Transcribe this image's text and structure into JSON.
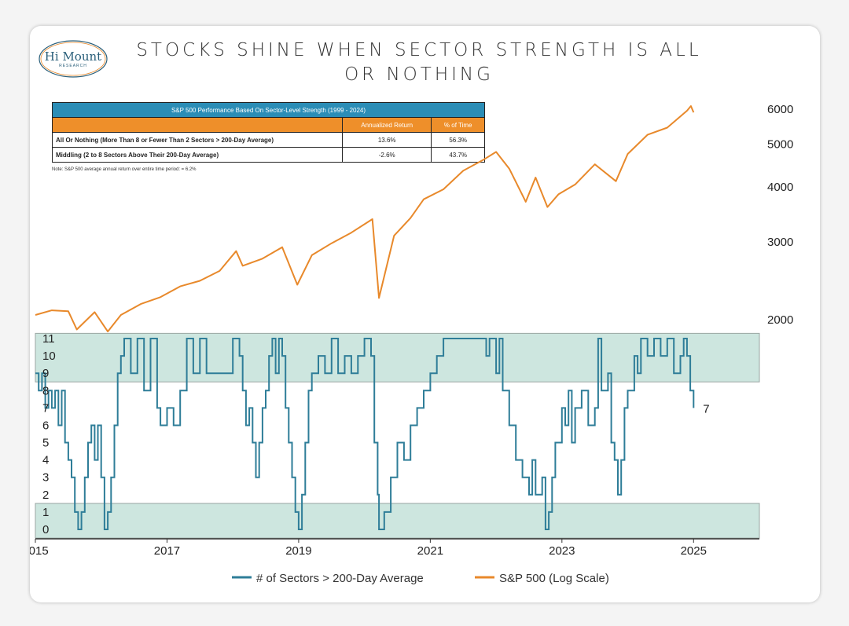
{
  "header": {
    "title_line1": "STOCKS SHINE WHEN SECTOR STRENGTH IS ALL",
    "title_line2": "OR NOTHING",
    "logo_line1": "Hi Mount",
    "logo_line2": "RESEARCH"
  },
  "table": {
    "title": "S&P 500 Performance Based On Sector-Level Strength (1999 - 2024)",
    "col1": "Annualized Return",
    "col2": "% of Time",
    "rows": [
      {
        "label": "All Or Nothing (More Than 8 or Fewer Than 2 Sectors > 200-Day Average)",
        "ret": "13.6%",
        "time": "56.3%"
      },
      {
        "label": "Middling (2 to 8 Sectors Above Their 200-Day Average)",
        "ret": "-2.6%",
        "time": "43.7%"
      }
    ],
    "note": "Note: S&P 500 average annual return over entire time period: = 6.2%"
  },
  "colors": {
    "sp500": "#e8892b",
    "sectors": "#2e7d98",
    "band": "#cde6df",
    "band_border": "#9aa6a3"
  },
  "chart_data": {
    "type": "line",
    "x_ticks": [
      "2015",
      "2017",
      "2019",
      "2021",
      "2023",
      "2025"
    ],
    "xlim": [
      2015,
      2026
    ],
    "sp500_ticks": [
      "2000",
      "3000",
      "4000",
      "5000",
      "6000"
    ],
    "sp500_scale": "log",
    "sector_ticks": [
      "0",
      "1",
      "2",
      "3",
      "4",
      "5",
      "6",
      "7",
      "8",
      "9",
      "10",
      "11"
    ],
    "sector_ylim": [
      0,
      11
    ],
    "bands": [
      [
        8.5,
        11.3
      ],
      [
        -0.5,
        1.5
      ]
    ],
    "end_annotation": "7",
    "series": [
      {
        "name": "S&P 500 (Log Scale)",
        "points": [
          [
            2015.0,
            2050
          ],
          [
            2015.25,
            2100
          ],
          [
            2015.5,
            2090
          ],
          [
            2015.63,
            1900
          ],
          [
            2015.9,
            2080
          ],
          [
            2016.1,
            1880
          ],
          [
            2016.3,
            2050
          ],
          [
            2016.6,
            2170
          ],
          [
            2016.9,
            2250
          ],
          [
            2017.2,
            2380
          ],
          [
            2017.5,
            2450
          ],
          [
            2017.8,
            2580
          ],
          [
            2018.05,
            2860
          ],
          [
            2018.15,
            2650
          ],
          [
            2018.45,
            2750
          ],
          [
            2018.75,
            2920
          ],
          [
            2018.98,
            2400
          ],
          [
            2019.2,
            2800
          ],
          [
            2019.5,
            2980
          ],
          [
            2019.8,
            3150
          ],
          [
            2020.12,
            3380
          ],
          [
            2020.22,
            2240
          ],
          [
            2020.45,
            3100
          ],
          [
            2020.7,
            3400
          ],
          [
            2020.9,
            3750
          ],
          [
            2021.2,
            3950
          ],
          [
            2021.5,
            4350
          ],
          [
            2021.8,
            4600
          ],
          [
            2022.0,
            4800
          ],
          [
            2022.2,
            4400
          ],
          [
            2022.45,
            3700
          ],
          [
            2022.6,
            4200
          ],
          [
            2022.78,
            3600
          ],
          [
            2022.95,
            3850
          ],
          [
            2023.2,
            4050
          ],
          [
            2023.5,
            4500
          ],
          [
            2023.82,
            4120
          ],
          [
            2024.0,
            4750
          ],
          [
            2024.3,
            5250
          ],
          [
            2024.6,
            5450
          ],
          [
            2024.9,
            5950
          ],
          [
            2024.96,
            6100
          ],
          [
            2025.0,
            5900
          ]
        ]
      },
      {
        "name": "# of Sectors > 200-Day Average",
        "points": [
          [
            2015.0,
            9
          ],
          [
            2015.05,
            8
          ],
          [
            2015.1,
            9
          ],
          [
            2015.15,
            7
          ],
          [
            2015.2,
            8
          ],
          [
            2015.25,
            7
          ],
          [
            2015.3,
            8
          ],
          [
            2015.35,
            6
          ],
          [
            2015.4,
            8
          ],
          [
            2015.45,
            5
          ],
          [
            2015.5,
            4
          ],
          [
            2015.55,
            3
          ],
          [
            2015.6,
            1
          ],
          [
            2015.65,
            0
          ],
          [
            2015.7,
            1
          ],
          [
            2015.75,
            3
          ],
          [
            2015.8,
            5
          ],
          [
            2015.85,
            6
          ],
          [
            2015.9,
            4
          ],
          [
            2015.95,
            6
          ],
          [
            2016.0,
            3
          ],
          [
            2016.05,
            0
          ],
          [
            2016.1,
            1
          ],
          [
            2016.15,
            3
          ],
          [
            2016.2,
            6
          ],
          [
            2016.25,
            9
          ],
          [
            2016.3,
            10
          ],
          [
            2016.35,
            11
          ],
          [
            2016.45,
            9
          ],
          [
            2016.55,
            11
          ],
          [
            2016.65,
            8
          ],
          [
            2016.75,
            11
          ],
          [
            2016.85,
            7
          ],
          [
            2016.9,
            6
          ],
          [
            2017.0,
            7
          ],
          [
            2017.1,
            6
          ],
          [
            2017.2,
            8
          ],
          [
            2017.3,
            11
          ],
          [
            2017.4,
            9
          ],
          [
            2017.5,
            11
          ],
          [
            2017.6,
            9
          ],
          [
            2017.8,
            9
          ],
          [
            2017.95,
            9
          ],
          [
            2018.0,
            11
          ],
          [
            2018.1,
            10
          ],
          [
            2018.15,
            8
          ],
          [
            2018.2,
            6
          ],
          [
            2018.25,
            7
          ],
          [
            2018.3,
            5
          ],
          [
            2018.35,
            3
          ],
          [
            2018.4,
            5
          ],
          [
            2018.45,
            7
          ],
          [
            2018.5,
            8
          ],
          [
            2018.55,
            10
          ],
          [
            2018.6,
            11
          ],
          [
            2018.65,
            9
          ],
          [
            2018.7,
            11
          ],
          [
            2018.75,
            10
          ],
          [
            2018.8,
            7
          ],
          [
            2018.85,
            5
          ],
          [
            2018.9,
            3
          ],
          [
            2018.95,
            1
          ],
          [
            2019.0,
            0
          ],
          [
            2019.05,
            2
          ],
          [
            2019.1,
            5
          ],
          [
            2019.15,
            8
          ],
          [
            2019.2,
            9
          ],
          [
            2019.3,
            10
          ],
          [
            2019.4,
            9
          ],
          [
            2019.5,
            11
          ],
          [
            2019.6,
            9
          ],
          [
            2019.7,
            10
          ],
          [
            2019.8,
            9
          ],
          [
            2019.9,
            10
          ],
          [
            2020.0,
            11
          ],
          [
            2020.1,
            10
          ],
          [
            2020.15,
            5
          ],
          [
            2020.2,
            2
          ],
          [
            2020.22,
            0
          ],
          [
            2020.3,
            1
          ],
          [
            2020.4,
            3
          ],
          [
            2020.5,
            5
          ],
          [
            2020.6,
            4
          ],
          [
            2020.7,
            6
          ],
          [
            2020.8,
            7
          ],
          [
            2020.9,
            8
          ],
          [
            2021.0,
            9
          ],
          [
            2021.1,
            10
          ],
          [
            2021.2,
            11
          ],
          [
            2021.5,
            11
          ],
          [
            2021.75,
            11
          ],
          [
            2021.85,
            10
          ],
          [
            2021.9,
            11
          ],
          [
            2022.0,
            9
          ],
          [
            2022.05,
            11
          ],
          [
            2022.1,
            8
          ],
          [
            2022.2,
            6
          ],
          [
            2022.3,
            4
          ],
          [
            2022.4,
            3
          ],
          [
            2022.5,
            2
          ],
          [
            2022.55,
            4
          ],
          [
            2022.6,
            2
          ],
          [
            2022.7,
            3
          ],
          [
            2022.75,
            0
          ],
          [
            2022.8,
            1
          ],
          [
            2022.85,
            3
          ],
          [
            2022.9,
            5
          ],
          [
            2023.0,
            7
          ],
          [
            2023.05,
            6
          ],
          [
            2023.1,
            8
          ],
          [
            2023.15,
            5
          ],
          [
            2023.2,
            7
          ],
          [
            2023.3,
            8
          ],
          [
            2023.4,
            6
          ],
          [
            2023.5,
            7
          ],
          [
            2023.55,
            11
          ],
          [
            2023.6,
            8
          ],
          [
            2023.7,
            9
          ],
          [
            2023.75,
            5
          ],
          [
            2023.8,
            4
          ],
          [
            2023.85,
            2
          ],
          [
            2023.9,
            4
          ],
          [
            2023.95,
            7
          ],
          [
            2024.0,
            8
          ],
          [
            2024.1,
            10
          ],
          [
            2024.15,
            9
          ],
          [
            2024.2,
            11
          ],
          [
            2024.3,
            10
          ],
          [
            2024.4,
            11
          ],
          [
            2024.5,
            10
          ],
          [
            2024.6,
            11
          ],
          [
            2024.7,
            9
          ],
          [
            2024.8,
            10
          ],
          [
            2024.85,
            11
          ],
          [
            2024.9,
            10
          ],
          [
            2024.95,
            8
          ],
          [
            2025.0,
            7
          ]
        ]
      }
    ]
  }
}
